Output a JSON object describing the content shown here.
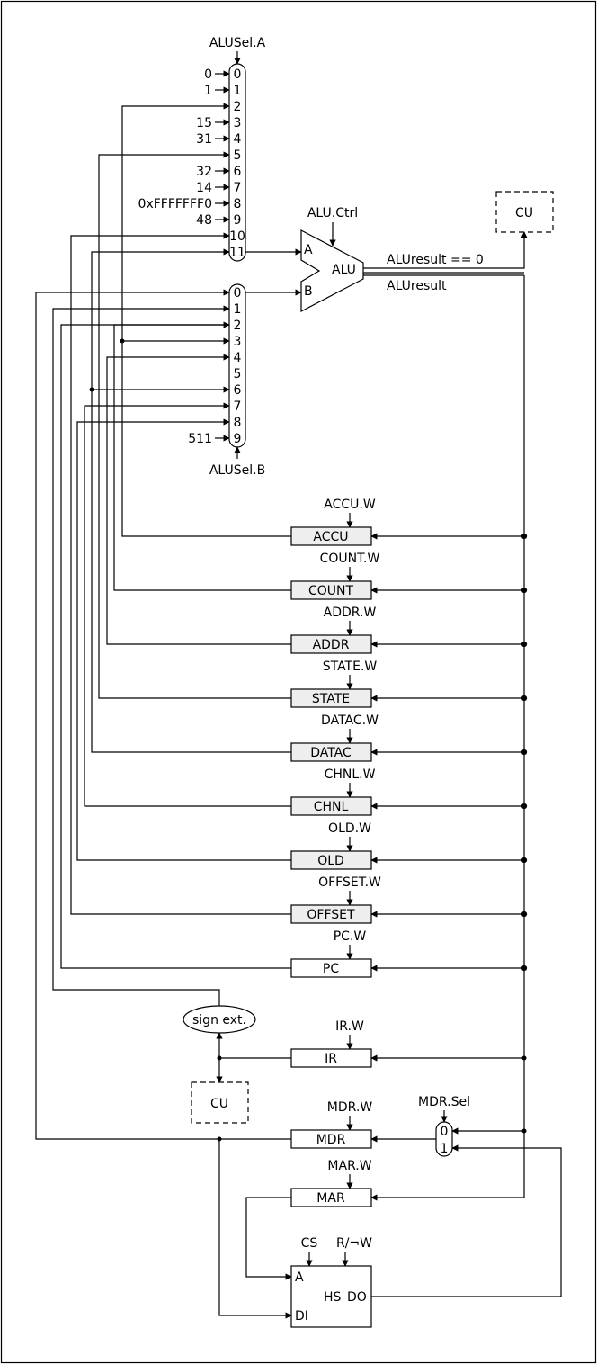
{
  "mux_a": {
    "select_label": "ALUSel.A",
    "indices": [
      "0",
      "1",
      "2",
      "3",
      "4",
      "5",
      "6",
      "7",
      "8",
      "9",
      "10",
      "11"
    ],
    "constants": [
      "0",
      "1",
      "15",
      "31",
      "32",
      "14",
      "0xFFFFFFF0",
      "48"
    ]
  },
  "mux_b": {
    "select_label": "ALUSel.B",
    "indices": [
      "0",
      "1",
      "2",
      "3",
      "4",
      "5",
      "6",
      "7",
      "8",
      "9"
    ],
    "constants": [
      "511"
    ]
  },
  "alu": {
    "ctrl_label": "ALU.Ctrl",
    "label": "ALU",
    "input_a": "A",
    "input_b": "B",
    "zero_output": "ALUresult == 0",
    "result_output": "ALUresult"
  },
  "cu_top": "CU",
  "cu_bottom": "CU",
  "registers": [
    {
      "name": "ACCU",
      "write": "ACCU.W"
    },
    {
      "name": "COUNT",
      "write": "COUNT.W"
    },
    {
      "name": "ADDR",
      "write": "ADDR.W"
    },
    {
      "name": "STATE",
      "write": "STATE.W"
    },
    {
      "name": "DATAC",
      "write": "DATAC.W"
    },
    {
      "name": "CHNL",
      "write": "CHNL.W"
    },
    {
      "name": "OLD",
      "write": "OLD.W"
    },
    {
      "name": "OFFSET",
      "write": "OFFSET.W"
    },
    {
      "name": "PC",
      "write": "PC.W"
    }
  ],
  "sign_ext": "sign ext.",
  "ir": {
    "name": "IR",
    "write": "IR.W"
  },
  "mdr": {
    "name": "MDR",
    "write": "MDR.W"
  },
  "mar": {
    "name": "MAR",
    "write": "MAR.W"
  },
  "mdr_mux": {
    "select_label": "MDR.Sel",
    "indices": [
      "0",
      "1"
    ]
  },
  "memory": {
    "cs": "CS",
    "rw": "R/¬W",
    "addr": "A",
    "data_in": "DI",
    "label": "HS",
    "data_out": "DO"
  }
}
